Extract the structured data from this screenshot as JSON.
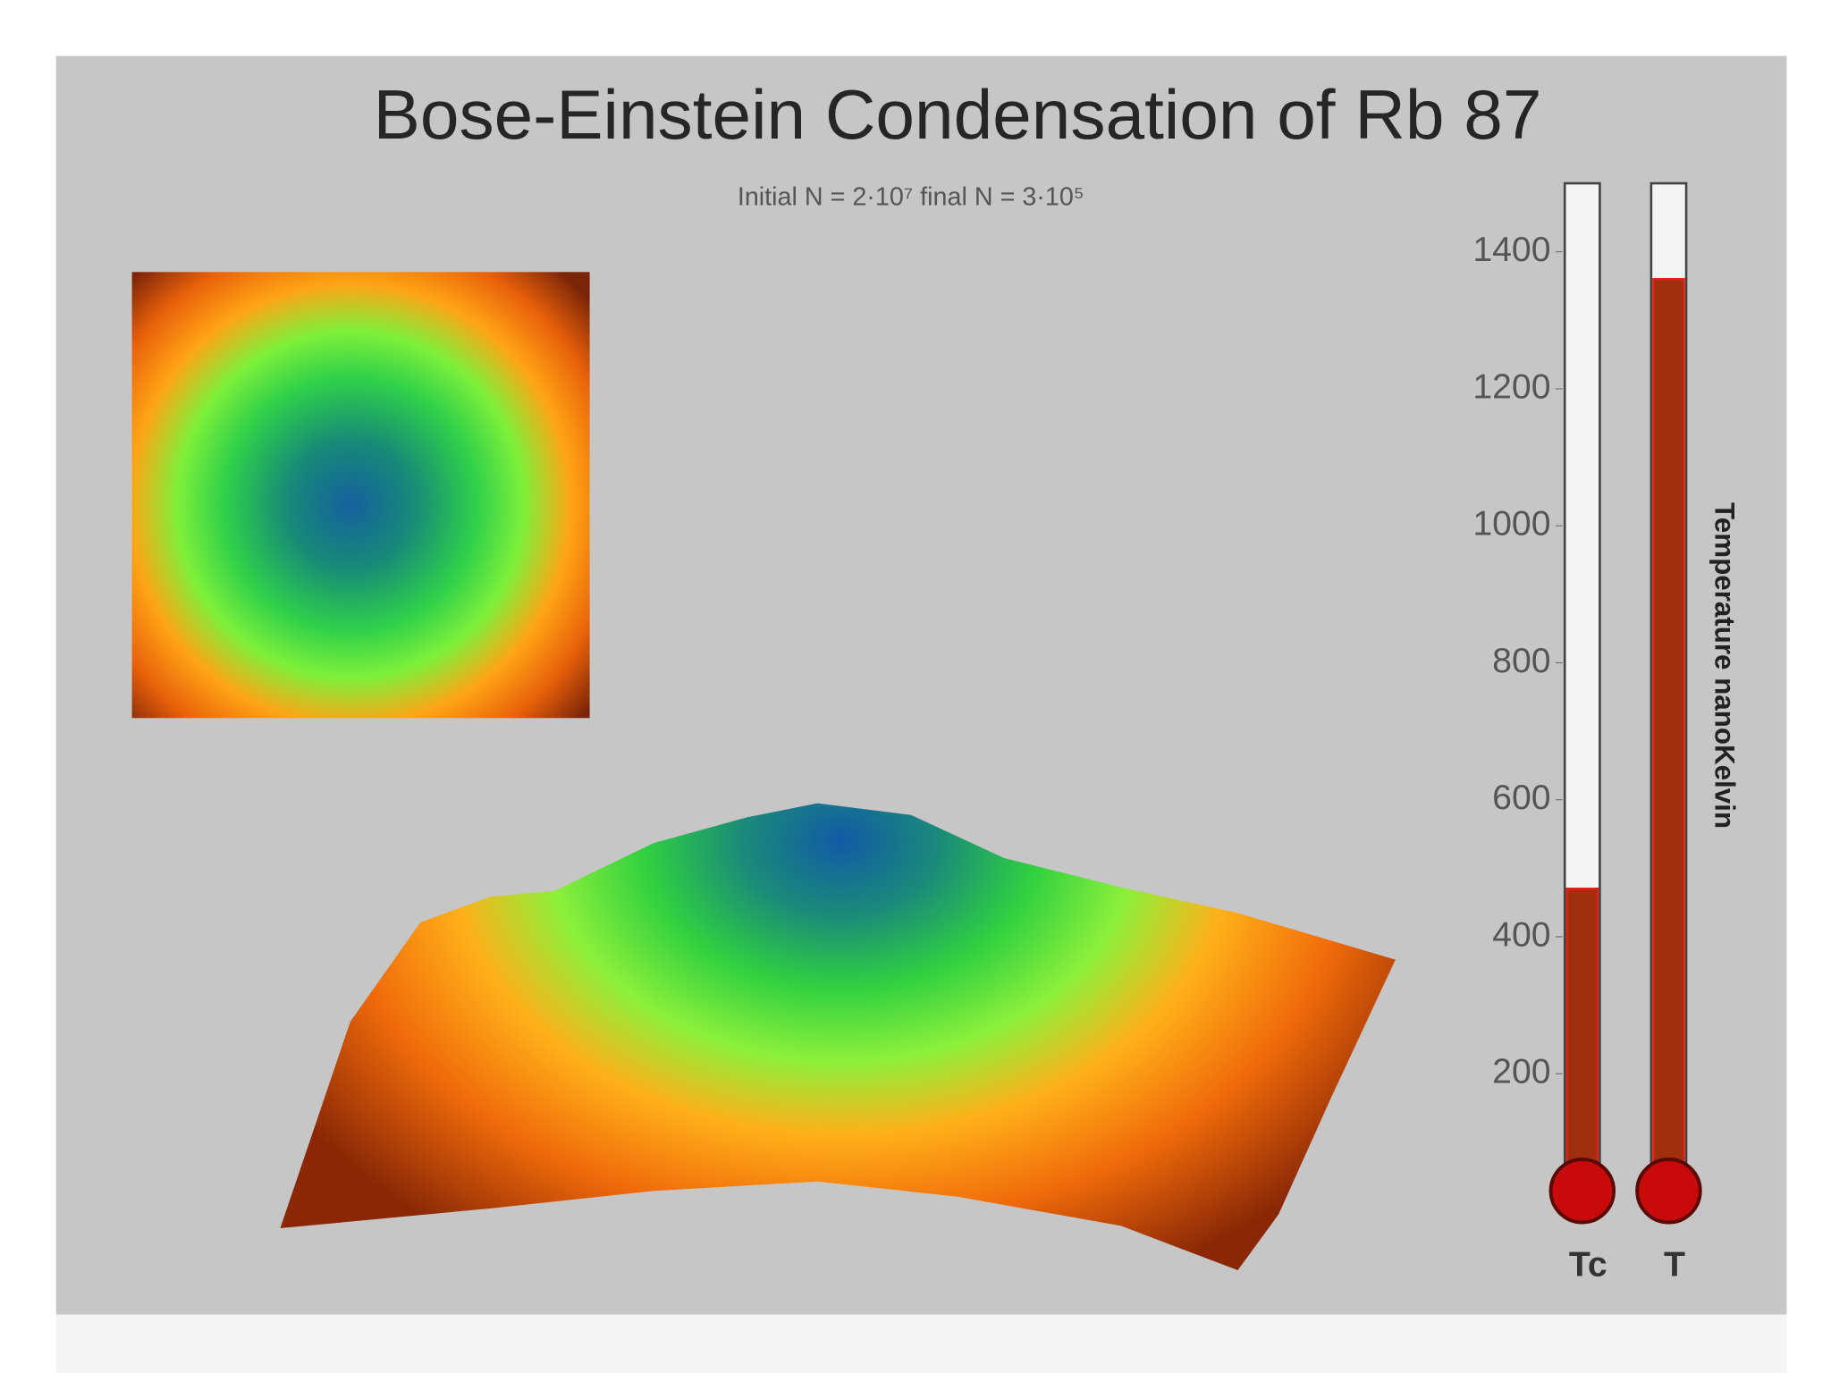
{
  "chart_data": {
    "type": "bar",
    "title": "Bose-Einstein Condensation of Rb 87",
    "subtitle": "Initial N = 2·10⁷   final N = 3·10⁵",
    "y_label": "Temperature nanoKelvin",
    "categories": [
      "Tc",
      "T"
    ],
    "values": [
      470,
      1360
    ],
    "color": "#9e300e",
    "ylim": [
      0,
      1500
    ],
    "yticks": [
      200,
      400,
      600,
      800,
      1000,
      1200,
      1400
    ]
  }
}
